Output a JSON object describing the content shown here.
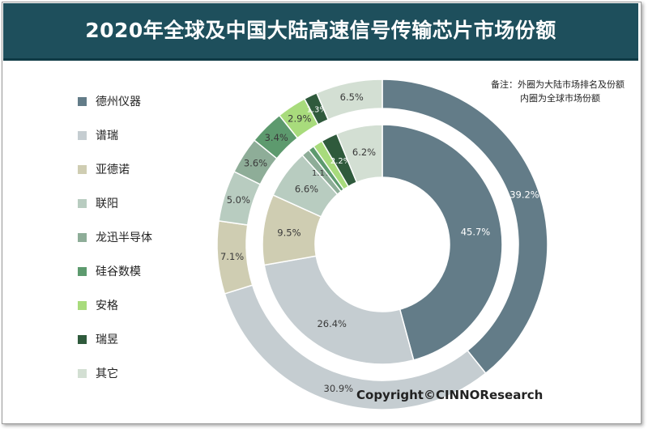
{
  "title": "2020年全球及中国大陆高速信号传输芯片市场份额",
  "note": {
    "line1": "备注：外圈为大陆市场排名及份额",
    "line2": "内圈为全球市场份额"
  },
  "copyright": "Copyright©CINNOResearch",
  "colors": [
    "#637c88",
    "#c5cdd1",
    "#cfcdb2",
    "#b8ccc0",
    "#8ead98",
    "#5d9a6e",
    "#a8db7c",
    "#2f5a3c",
    "#d3dfd3"
  ],
  "chart_data": {
    "type": "pie",
    "subtype": "donut",
    "legend_position": "left",
    "categories": [
      "德州仪器",
      "谱瑞",
      "亚德诺",
      "联阳",
      "龙迅半导体",
      "硅谷数模",
      "安格",
      "瑞昱",
      "其它"
    ],
    "series": [
      {
        "ring": "outer",
        "values": [
          39.2,
          30.9,
          7.1,
          5.0,
          3.6,
          3.4,
          2.9,
          1.3,
          6.5
        ],
        "labels": [
          "39.2%",
          "30.9%",
          "7.1%",
          "5.0%",
          "3.6%",
          "3.4%",
          "2.9%",
          "1.3%",
          "6.5%"
        ]
      },
      {
        "ring": "inner",
        "values": [
          45.7,
          26.4,
          9.5,
          6.6,
          1.1,
          0.8,
          1.3,
          2.2,
          6.2
        ],
        "labels": [
          "45.7%",
          "26.4%",
          "9.5%",
          "6.6%",
          "1.1%",
          "",
          "",
          "2.2%",
          "6.2%"
        ]
      }
    ]
  }
}
